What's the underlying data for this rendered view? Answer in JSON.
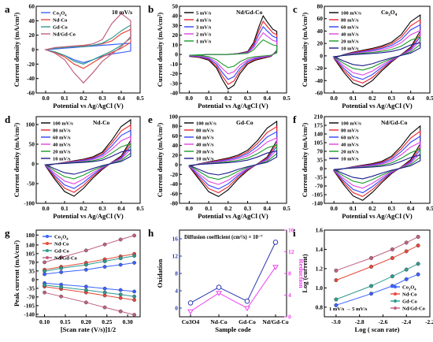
{
  "chart_data": [
    {
      "panel": "a",
      "type": "line",
      "title": "",
      "xlabel": "Potential vs Ag/AgCl (V)",
      "ylabel": "Current density (mA/cm²)",
      "xlim": [
        -0.05,
        0.5
      ],
      "ylim": [
        -60,
        60
      ],
      "xticks": [
        "0.0",
        "0.1",
        "0.2",
        "0.3",
        "0.4",
        "0.5"
      ],
      "yticks": [
        "-60",
        "-40",
        "-20",
        "0",
        "20",
        "40",
        "60"
      ],
      "legend": "top-left",
      "annotation": "10 mV/s",
      "series": [
        {
          "name": "Co3O4",
          "color": "#3a62ff",
          "x": [
            0.0,
            0.05,
            0.1,
            0.15,
            0.2,
            0.25,
            0.3,
            0.35,
            0.4,
            0.45,
            0.45,
            0.4,
            0.35,
            0.3,
            0.25,
            0.2,
            0.15,
            0.1,
            0.05,
            0.0
          ],
          "y": [
            0,
            1,
            2,
            3,
            4,
            5,
            6,
            7,
            8,
            9,
            -2,
            -4,
            -6,
            -9,
            -14,
            -18,
            -14,
            -8,
            -4,
            0
          ]
        },
        {
          "name": "Nd-Co",
          "color": "#e84a3a",
          "x": [
            0.0,
            0.05,
            0.1,
            0.15,
            0.2,
            0.25,
            0.3,
            0.35,
            0.4,
            0.45,
            0.45,
            0.4,
            0.35,
            0.3,
            0.25,
            0.2,
            0.15,
            0.1,
            0.05,
            0.0
          ],
          "y": [
            0,
            2,
            3,
            4,
            5,
            6,
            8,
            12,
            22,
            28,
            10,
            2,
            -4,
            -10,
            -18,
            -26,
            -20,
            -10,
            -4,
            0
          ]
        },
        {
          "name": "Gd-Co",
          "color": "#2e9a8e",
          "x": [
            0.0,
            0.05,
            0.1,
            0.15,
            0.2,
            0.25,
            0.3,
            0.35,
            0.4,
            0.45,
            0.45,
            0.4,
            0.35,
            0.3,
            0.25,
            0.2,
            0.15,
            0.1,
            0.05,
            0.0
          ],
          "y": [
            0,
            2,
            3,
            4,
            4,
            6,
            9,
            16,
            26,
            34,
            16,
            6,
            -2,
            -8,
            -14,
            -20,
            -16,
            -8,
            -3,
            0
          ]
        },
        {
          "name": "Nd/Gd-Co",
          "color": "#c06080",
          "x": [
            0.0,
            0.05,
            0.1,
            0.15,
            0.2,
            0.25,
            0.3,
            0.35,
            0.4,
            0.45,
            0.45,
            0.4,
            0.35,
            0.3,
            0.25,
            0.2,
            0.15,
            0.1,
            0.05,
            0.0
          ],
          "y": [
            0,
            3,
            4,
            5,
            6,
            8,
            14,
            36,
            50,
            40,
            18,
            4,
            -6,
            -16,
            -32,
            -46,
            -32,
            -14,
            -5,
            0
          ]
        }
      ]
    },
    {
      "panel": "b",
      "type": "line",
      "title": "",
      "xlabel": "Potential vs Ag/AgCl (V)",
      "ylabel": "Current density (mA/cm²)",
      "xlim": [
        -0.05,
        0.5
      ],
      "ylim": [
        -40,
        50
      ],
      "xticks": [
        "0.0",
        "0.1",
        "0.2",
        "0.3",
        "0.4",
        "0.5"
      ],
      "yticks": [
        "-40",
        "-30",
        "-20",
        "-10",
        "0",
        "10",
        "20",
        "30",
        "40",
        "50"
      ],
      "legend": "top-left",
      "annotation": "Nd/Gd-Co",
      "series": [
        {
          "name": "5 mV/s",
          "color": "#000000",
          "k": 1.0
        },
        {
          "name": "4 mV/s",
          "color": "#e8232a",
          "k": 0.86
        },
        {
          "name": "3 mV/s",
          "color": "#3040ff",
          "k": 0.72
        },
        {
          "name": "2 mV/s",
          "color": "#e040e0",
          "k": 0.56
        },
        {
          "name": "1 mV/s",
          "color": "#1a9a2a",
          "k": 0.38
        }
      ],
      "base": {
        "x": [
          0.0,
          0.05,
          0.1,
          0.15,
          0.2,
          0.25,
          0.3,
          0.33,
          0.36,
          0.38,
          0.4,
          0.43,
          0.45,
          0.45,
          0.42,
          0.38,
          0.34,
          0.3,
          0.26,
          0.23,
          0.2,
          0.17,
          0.14,
          0.1,
          0.05,
          0.0
        ],
        "y": [
          -2,
          -1,
          0,
          0,
          0,
          1,
          3,
          12,
          30,
          40,
          34,
          26,
          24,
          4,
          -2,
          -4,
          -6,
          -10,
          -20,
          -32,
          -36,
          -26,
          -14,
          -6,
          -3,
          -2
        ]
      }
    },
    {
      "panel": "c",
      "type": "line",
      "title": "",
      "xlabel": "Potential vs Ag/AgCl (V)",
      "ylabel": "Current density (mA/cm²)",
      "xlim": [
        -0.05,
        0.5
      ],
      "ylim": [
        -60,
        80
      ],
      "xticks": [
        "0.0",
        "0.1",
        "0.2",
        "0.3",
        "0.4",
        "0.5"
      ],
      "yticks": [
        "-60",
        "-40",
        "-20",
        "0",
        "20",
        "40",
        "60",
        "80"
      ],
      "legend": "top-left",
      "annotation": "Co3O4",
      "series": [
        {
          "name": "100 mV/s",
          "color": "#000000",
          "k": 1.0
        },
        {
          "name": "80 mV/s",
          "color": "#e8232a",
          "k": 0.88
        },
        {
          "name": "60 mV/s",
          "color": "#3040ff",
          "k": 0.76
        },
        {
          "name": "40 mV/s",
          "color": "#e040e0",
          "k": 0.62
        },
        {
          "name": "20 mV/s",
          "color": "#1a9a2a",
          "k": 0.46
        },
        {
          "name": "10 mV/s",
          "color": "#1a1a8a",
          "k": 0.32
        }
      ],
      "base": {
        "x": [
          0.0,
          0.05,
          0.1,
          0.15,
          0.2,
          0.25,
          0.3,
          0.35,
          0.4,
          0.45,
          0.45,
          0.4,
          0.35,
          0.3,
          0.25,
          0.2,
          0.15,
          0.1,
          0.05,
          0.0
        ],
        "y": [
          -4,
          2,
          6,
          9,
          12,
          16,
          22,
          34,
          55,
          66,
          40,
          14,
          2,
          -10,
          -24,
          -40,
          -50,
          -44,
          -26,
          -4
        ]
      }
    },
    {
      "panel": "d",
      "type": "line",
      "title": "",
      "xlabel": "Potential vs Ag/AgCl (V)",
      "ylabel": "Current density (mA/cm²)",
      "xlim": [
        -0.05,
        0.5
      ],
      "ylim": [
        -100,
        120
      ],
      "xticks": [
        "0.0",
        "0.1",
        "0.2",
        "0.3",
        "0.4",
        "0.5"
      ],
      "yticks": [
        "-100",
        "-50",
        "0",
        "50",
        "100"
      ],
      "legend": "top-left",
      "annotation": "Nd-Co",
      "series": [
        {
          "name": "100 mV/s",
          "color": "#000000",
          "k": 1.0
        },
        {
          "name": "80 mV/s",
          "color": "#e8232a",
          "k": 0.88
        },
        {
          "name": "60 mV/s",
          "color": "#3040ff",
          "k": 0.76
        },
        {
          "name": "40 mV/s",
          "color": "#e040e0",
          "k": 0.62
        },
        {
          "name": "20 mV/s",
          "color": "#1a9a2a",
          "k": 0.46
        },
        {
          "name": "10 mV/s",
          "color": "#1a1a8a",
          "k": 0.32
        }
      ],
      "base": {
        "x": [
          0.0,
          0.05,
          0.1,
          0.15,
          0.2,
          0.25,
          0.3,
          0.35,
          0.4,
          0.45,
          0.45,
          0.4,
          0.35,
          0.3,
          0.25,
          0.2,
          0.15,
          0.1,
          0.05,
          0.0
        ],
        "y": [
          -6,
          0,
          4,
          8,
          12,
          18,
          30,
          60,
          95,
          112,
          60,
          20,
          4,
          -14,
          -36,
          -62,
          -82,
          -70,
          -40,
          -6
        ]
      }
    },
    {
      "panel": "e",
      "type": "line",
      "title": "",
      "xlabel": "Potential vs Ag/AgCl (V)",
      "ylabel": "Current density (mA/cm²)",
      "xlim": [
        -0.05,
        0.5
      ],
      "ylim": [
        -80,
        100
      ],
      "xticks": [
        "0.0",
        "0.1",
        "0.2",
        "0.3",
        "0.4",
        "0.5"
      ],
      "yticks": [
        "-80",
        "-60",
        "-40",
        "-20",
        "0",
        "20",
        "40",
        "60",
        "80",
        "100"
      ],
      "legend": "top-left",
      "annotation": "Gd-Co",
      "series": [
        {
          "name": "100 mV/s",
          "color": "#000000",
          "k": 1.0
        },
        {
          "name": "80 mV/s",
          "color": "#e8232a",
          "k": 0.88
        },
        {
          "name": "60 mV/s",
          "color": "#3040ff",
          "k": 0.76
        },
        {
          "name": "40 mV/s",
          "color": "#e040e0",
          "k": 0.62
        },
        {
          "name": "20 mV/s",
          "color": "#1a9a2a",
          "k": 0.46
        },
        {
          "name": "10 mV/s",
          "color": "#1a1a8a",
          "k": 0.32
        }
      ],
      "base": {
        "x": [
          0.0,
          0.05,
          0.1,
          0.15,
          0.2,
          0.25,
          0.3,
          0.35,
          0.4,
          0.45,
          0.45,
          0.4,
          0.35,
          0.3,
          0.25,
          0.2,
          0.15,
          0.1,
          0.05,
          0.0
        ],
        "y": [
          -4,
          2,
          6,
          10,
          14,
          20,
          30,
          50,
          76,
          90,
          50,
          16,
          2,
          -12,
          -30,
          -52,
          -66,
          -56,
          -30,
          -4
        ]
      }
    },
    {
      "panel": "f",
      "type": "line",
      "title": "",
      "xlabel": "Potential vs Ag/AgCl (V)",
      "ylabel": "Current density (mA/cm²)",
      "xlim": [
        -0.05,
        0.5
      ],
      "ylim": [
        -140,
        210
      ],
      "xticks": [
        "0.0",
        "0.1",
        "0.2",
        "0.3",
        "0.4",
        "0.5"
      ],
      "yticks": [
        "-140",
        "-105",
        "-70",
        "-35",
        "0",
        "35",
        "70",
        "105",
        "140",
        "175",
        "210"
      ],
      "legend": "top-left",
      "annotation": "Nd/Gd-Co",
      "series": [
        {
          "name": "100 mV/s",
          "color": "#000000",
          "k": 1.0
        },
        {
          "name": "80 mV/s",
          "color": "#e8232a",
          "k": 0.88
        },
        {
          "name": "60 mV/s",
          "color": "#3040ff",
          "k": 0.76
        },
        {
          "name": "40 mV/s",
          "color": "#e040e0",
          "k": 0.62
        },
        {
          "name": "20 mV/s",
          "color": "#1a9a2a",
          "k": 0.46
        },
        {
          "name": "10 mV/s",
          "color": "#1a1a8a",
          "k": 0.32
        }
      ],
      "base": {
        "x": [
          0.0,
          0.05,
          0.1,
          0.15,
          0.2,
          0.25,
          0.3,
          0.35,
          0.4,
          0.45,
          0.45,
          0.4,
          0.35,
          0.3,
          0.25,
          0.2,
          0.15,
          0.1,
          0.05,
          0.0
        ],
        "y": [
          -10,
          0,
          8,
          14,
          20,
          30,
          50,
          90,
          140,
          172,
          100,
          36,
          6,
          -20,
          -56,
          -96,
          -128,
          -110,
          -64,
          -10
        ]
      }
    },
    {
      "panel": "g",
      "type": "scatter",
      "title": "",
      "xlabel": "[Scan rate (V/s)]1/2",
      "ylabel": "Peak current (mA/cm²)",
      "xlim": [
        0.08,
        0.33
      ],
      "ylim": [
        -150,
        200
      ],
      "xticks": [
        "0.10",
        "0.15",
        "0.20",
        "0.25",
        "0.30"
      ],
      "yticks": [
        "-140",
        "-105",
        "-70",
        "-35",
        "0",
        "35",
        "70",
        "105",
        "140",
        "180"
      ],
      "legend": "top-left",
      "x": [
        0.1,
        0.14,
        0.2,
        0.245,
        0.283,
        0.316
      ],
      "series": [
        {
          "name": "Co3O4",
          "color": "#3a62ff",
          "y": [
            22,
            30,
            40,
            52,
            60,
            68
          ]
        },
        {
          "name": "Nd-Co",
          "color": "#e84a3a",
          "y": [
            40,
            52,
            68,
            82,
            94,
            104
          ]
        },
        {
          "name": "Gd-Co",
          "color": "#2e9a8e",
          "y": [
            34,
            46,
            60,
            74,
            86,
            96
          ]
        },
        {
          "name": "Nd/Gd-Co",
          "color": "#c06080",
          "y": [
            70,
            90,
            118,
            142,
            162,
            178
          ]
        },
        {
          "name": "Co3O4",
          "color": "#3a62ff",
          "y": [
            -14,
            -20,
            -28,
            -36,
            -42,
            -48
          ]
        },
        {
          "name": "Nd-Co",
          "color": "#e84a3a",
          "y": [
            -28,
            -38,
            -52,
            -64,
            -74,
            -82
          ]
        },
        {
          "name": "Gd-Co",
          "color": "#2e9a8e",
          "y": [
            -22,
            -30,
            -42,
            -52,
            -60,
            -68
          ]
        },
        {
          "name": "Nd/Gd-Co",
          "color": "#c06080",
          "y": [
            -52,
            -68,
            -92,
            -112,
            -128,
            -142
          ]
        }
      ]
    },
    {
      "panel": "h",
      "type": "line",
      "title": "",
      "xlabel": "Sample code",
      "ylabel": "Oxidation",
      "ylabel2": "Reduction",
      "annotation": "Diffusion coefficient (cm²/s) × 10⁻⁷",
      "categories": [
        "Co3O4",
        "Nd-Co",
        "Gd-Co",
        "Nd/Gd-Co"
      ],
      "ylim": [
        -2,
        18
      ],
      "ylim2": [
        0,
        16
      ],
      "yticks": [
        "0",
        "4",
        "8",
        "12",
        "16"
      ],
      "yticks2": [
        "0",
        "4",
        "8",
        "12",
        "16"
      ],
      "series": [
        {
          "name": "Oxidation",
          "color": "#2a3ab0",
          "marker": "circle",
          "values": [
            1.2,
            4.8,
            1.6,
            15.2
          ]
        },
        {
          "name": "Reduction",
          "color": "#ee40ee",
          "marker": "triangle",
          "values": [
            1.0,
            4.4,
            1.6,
            9.2
          ]
        }
      ]
    },
    {
      "panel": "i",
      "type": "scatter",
      "title": "",
      "xlabel": "Log ( scan rate)",
      "ylabel": "Log (current)",
      "xlim": [
        -3.1,
        -2.2
      ],
      "ylim": [
        0.7,
        1.6
      ],
      "xticks": [
        "-3.0",
        "-2.8",
        "-2.6",
        "-2.4",
        "-2.2"
      ],
      "yticks": [
        "0.8",
        "1.0",
        "1.2",
        "1.4",
        "1.6"
      ],
      "legend": "bottom-right",
      "annotation": "1 mV/s → 5 mV/s",
      "x": [
        -3.0,
        -2.7,
        -2.52,
        -2.4,
        -2.3
      ],
      "series": [
        {
          "name": "Co3O4",
          "color": "#3a62ff",
          "y": [
            0.82,
            0.94,
            1.02,
            1.09,
            1.14
          ]
        },
        {
          "name": "Nd-Co",
          "color": "#e84a3a",
          "y": [
            1.08,
            1.22,
            1.31,
            1.38,
            1.44
          ]
        },
        {
          "name": "Gd-Co",
          "color": "#2e9a8e",
          "y": [
            0.88,
            1.02,
            1.12,
            1.19,
            1.25
          ]
        },
        {
          "name": "Nd/Gd-Co",
          "color": "#c06080",
          "y": [
            1.18,
            1.31,
            1.4,
            1.47,
            1.53
          ]
        }
      ]
    }
  ]
}
